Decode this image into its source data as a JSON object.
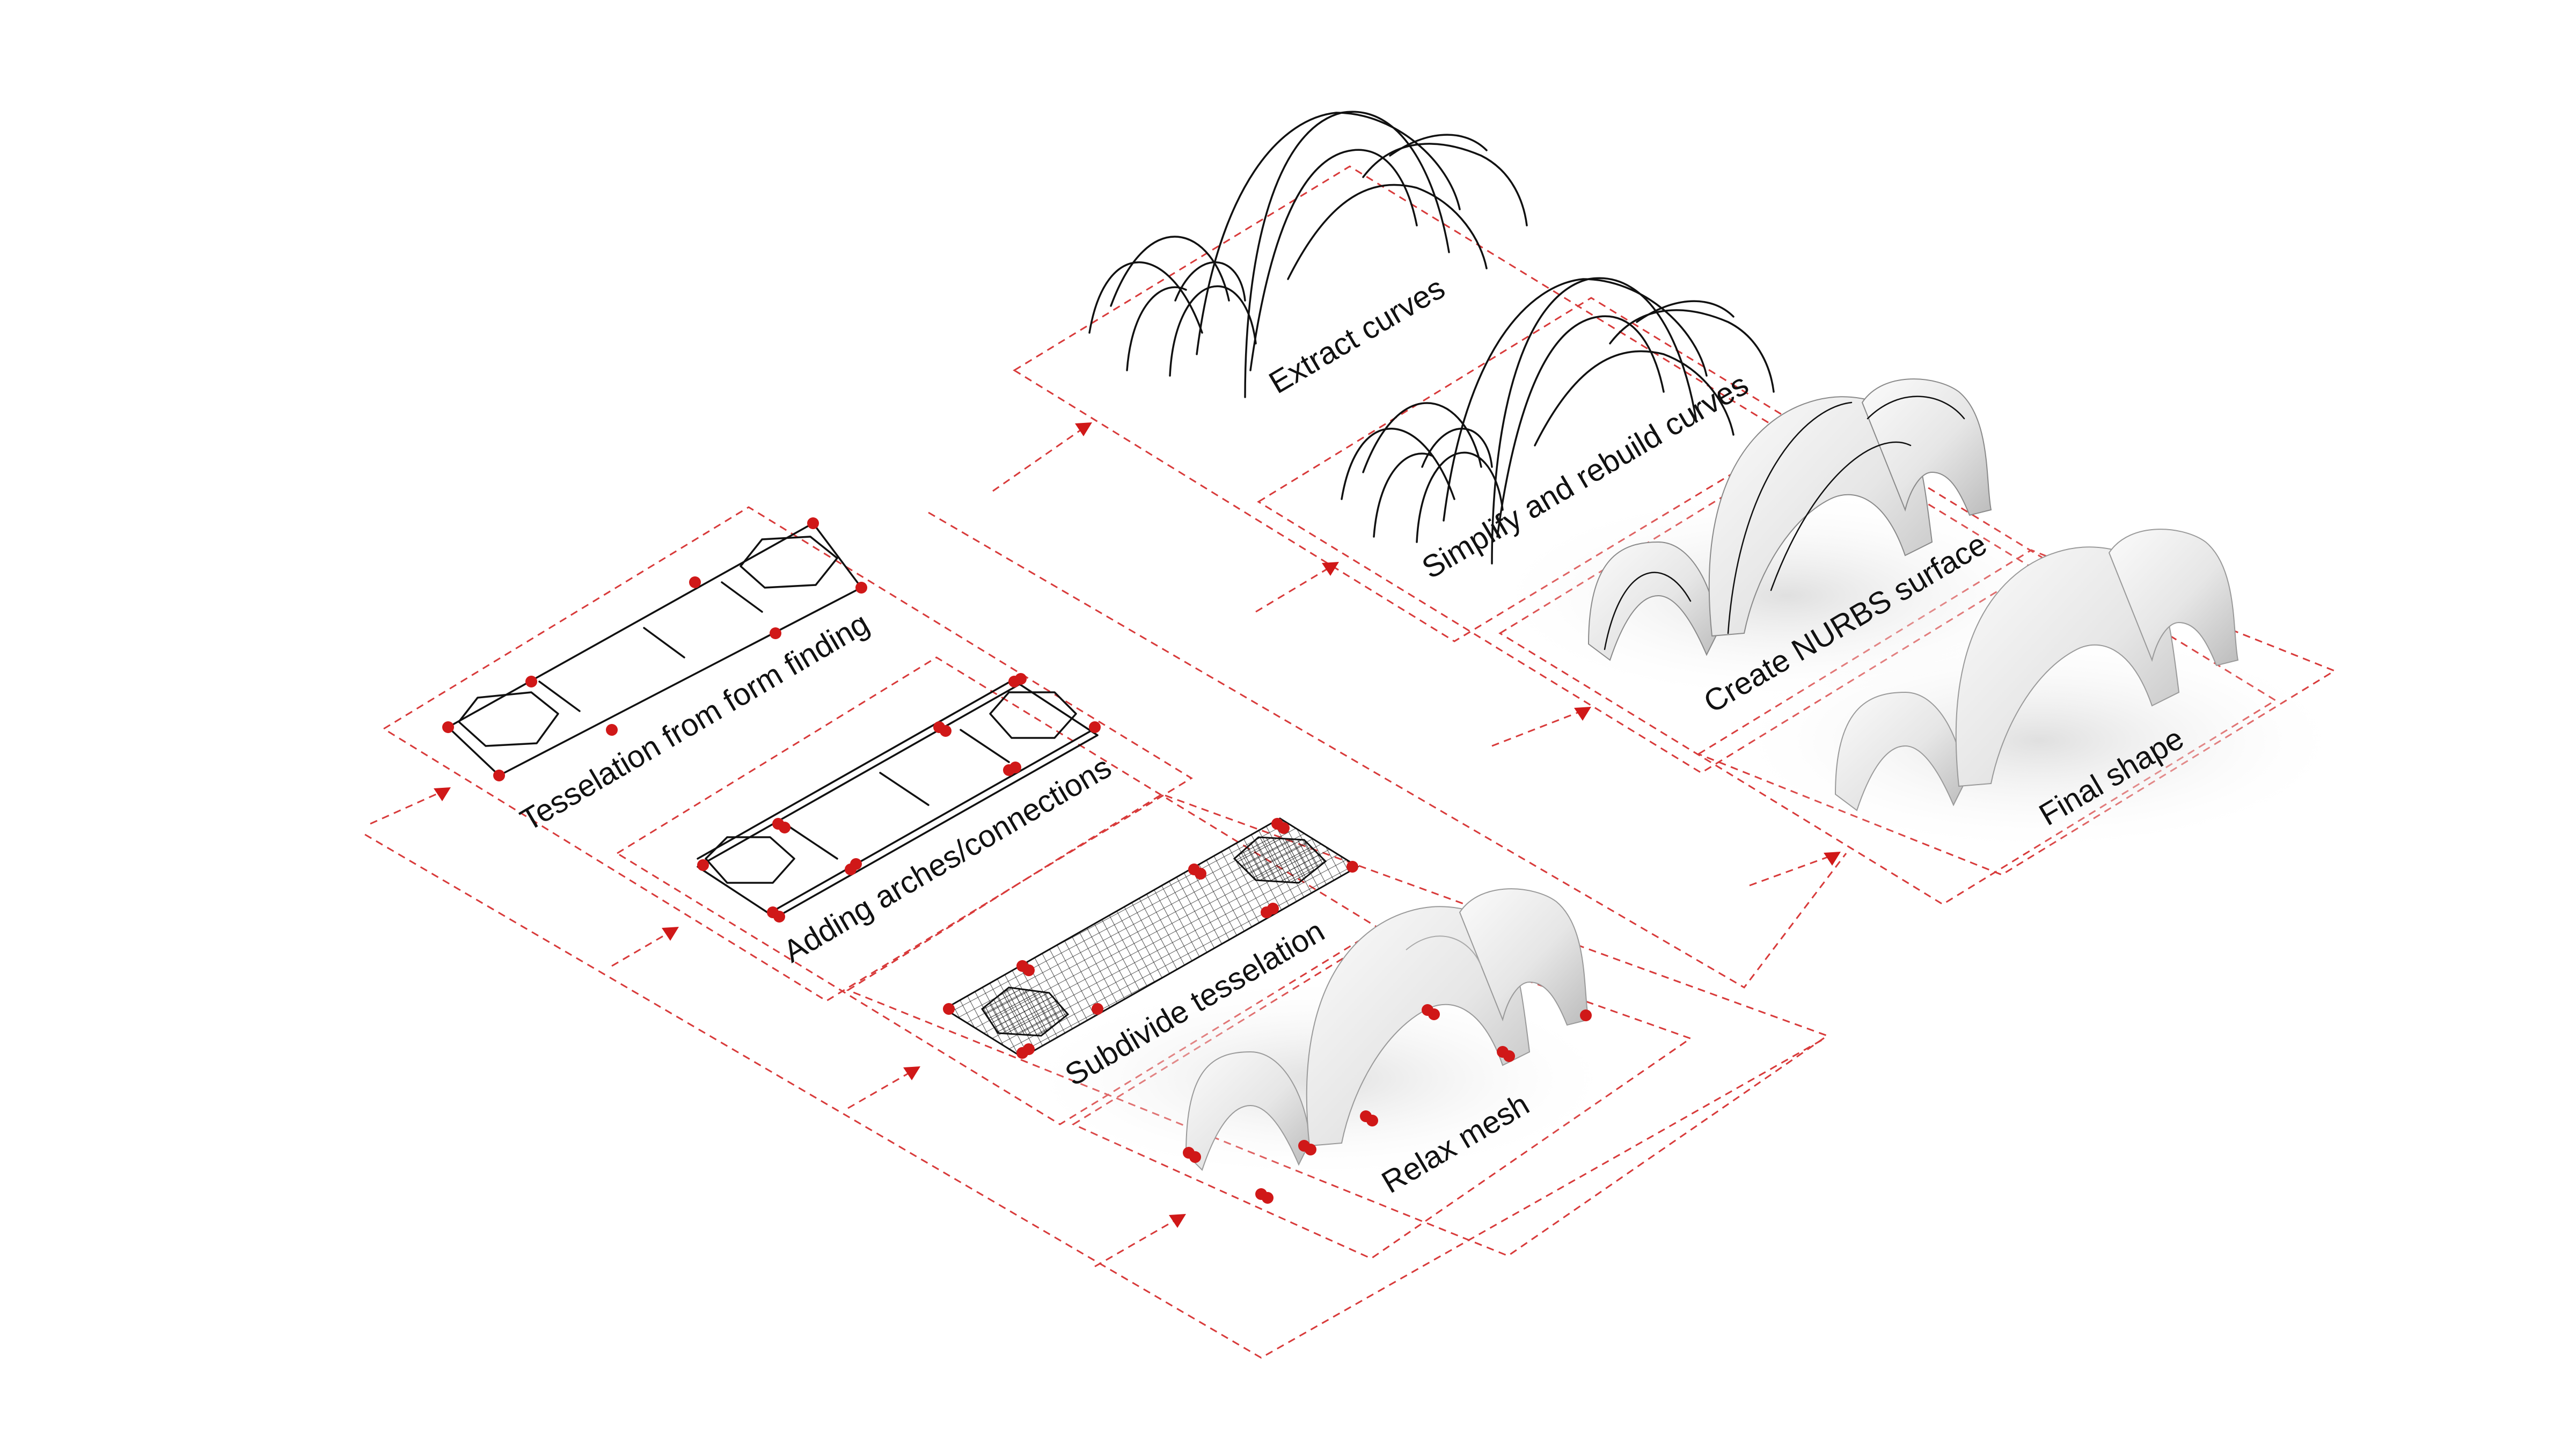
{
  "colors": {
    "accent_red": "#d01818",
    "frame_red": "#d83a3a",
    "ink": "#111111",
    "shell_light": "#f2f2f2",
    "shell_shade": "#bdbdbd",
    "shadow": "#e4e4e4"
  },
  "steps": [
    {
      "id": "tesselation",
      "label": "Tesselation from form finding"
    },
    {
      "id": "arches",
      "label": "Adding arches/connections"
    },
    {
      "id": "subdivide",
      "label": "Subdivide tesselation"
    },
    {
      "id": "relax",
      "label": "Relax mesh"
    },
    {
      "id": "extract",
      "label": "Extract curves"
    },
    {
      "id": "rebuild",
      "label": "Simplify and rebuild curves"
    },
    {
      "id": "nurbs",
      "label": "Create NURBS surface"
    },
    {
      "id": "final",
      "label": "Final shape"
    }
  ],
  "icons": {
    "arrow": "arrowhead-icon",
    "support": "support-node-icon"
  }
}
